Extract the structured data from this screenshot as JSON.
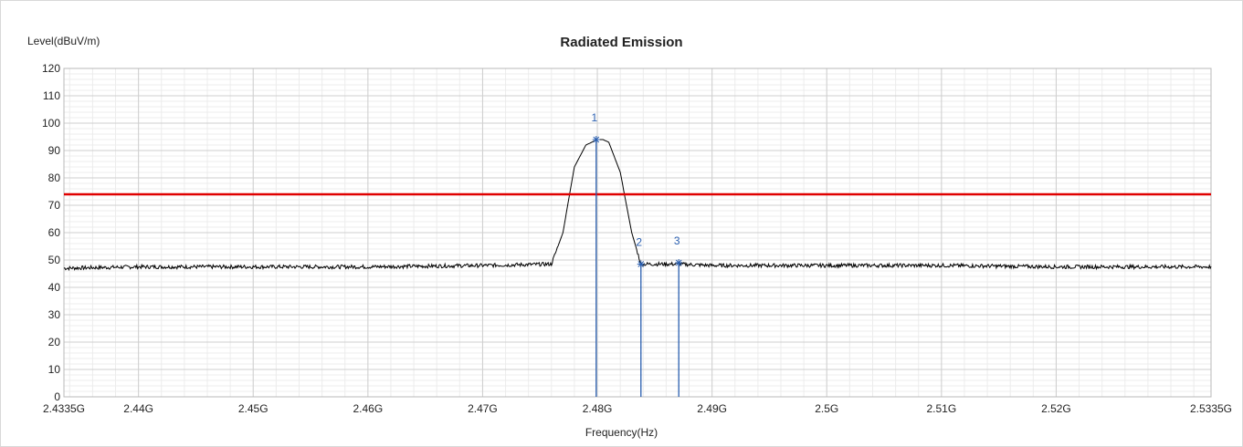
{
  "chart_data": {
    "type": "line",
    "title": "Radiated Emission",
    "ylabel": "Level(dBuV/m)",
    "xlabel": "Frequency(Hz)",
    "xlim": [
      2.4335,
      2.5335
    ],
    "ylim": [
      0,
      120
    ],
    "y_ticks": [
      0,
      10,
      20,
      30,
      40,
      50,
      60,
      70,
      80,
      90,
      100,
      110,
      120
    ],
    "x_ticks": [
      {
        "value": 2.4335,
        "label": "2.4335G"
      },
      {
        "value": 2.44,
        "label": "2.44G"
      },
      {
        "value": 2.45,
        "label": "2.45G"
      },
      {
        "value": 2.46,
        "label": "2.46G"
      },
      {
        "value": 2.47,
        "label": "2.47G"
      },
      {
        "value": 2.48,
        "label": "2.48G"
      },
      {
        "value": 2.49,
        "label": "2.49G"
      },
      {
        "value": 2.5,
        "label": "2.5G"
      },
      {
        "value": 2.51,
        "label": "2.51G"
      },
      {
        "value": 2.52,
        "label": "2.52G"
      },
      {
        "value": 2.5335,
        "label": "2.5335G"
      }
    ],
    "grid": true,
    "limit_line": {
      "value": 74,
      "color": "#e00000"
    },
    "trace": {
      "color": "#000000",
      "x": [
        2.4335,
        2.44,
        2.45,
        2.46,
        2.47,
        2.476,
        2.477,
        2.478,
        2.479,
        2.48,
        2.4805,
        2.481,
        2.482,
        2.483,
        2.4838,
        2.485,
        2.487,
        2.49,
        2.5,
        2.51,
        2.52,
        2.5335
      ],
      "y": [
        47,
        47.5,
        47.5,
        47.5,
        48,
        48.5,
        60,
        84,
        92,
        94,
        94,
        93,
        82,
        60,
        48.5,
        48.5,
        48.5,
        48,
        48,
        48,
        47.5,
        47.5
      ]
    },
    "markers": {
      "color": "#2a5fb0",
      "items": [
        {
          "label": "1",
          "x": 2.4799,
          "y": 94
        },
        {
          "label": "2",
          "x": 2.4838,
          "y": 48.5
        },
        {
          "label": "3",
          "x": 2.4871,
          "y": 49
        }
      ]
    }
  }
}
